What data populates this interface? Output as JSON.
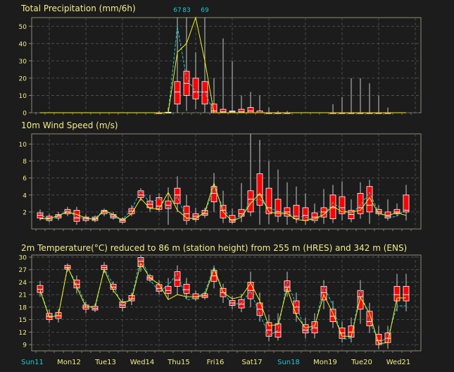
{
  "colors": {
    "background": "#1c1c1c",
    "text": "#f2ee8a",
    "frame": "#8c8c78",
    "grid": "#555555",
    "box_fill": "#ff0000",
    "box_edge": "#ffffff",
    "whisker": "#c8c8c8",
    "hres_line": "#f0f01e",
    "control_line": "#1ec8d2",
    "sunday_label": "#1ec8d2",
    "day_label": "#f2ee8a"
  },
  "chart_data": [
    {
      "id": "precip",
      "type": "boxplot",
      "title": "Total Precipitation (mm/6h)",
      "yticks": [
        0,
        10,
        20,
        30,
        40,
        50
      ],
      "ylim": [
        0,
        55
      ],
      "grid": true,
      "x_index": [
        0,
        1,
        2,
        3,
        4,
        5,
        6,
        7,
        8,
        9,
        10,
        11,
        12,
        13,
        14,
        15,
        16,
        17,
        18,
        19,
        20,
        21,
        22,
        23,
        24,
        25,
        26,
        27,
        28,
        29,
        30,
        31,
        32,
        33,
        34,
        35,
        36,
        37,
        38,
        39,
        40
      ],
      "boxes": [
        [
          0,
          0,
          0,
          0,
          0
        ],
        [
          0,
          0,
          0,
          0,
          0
        ],
        [
          0,
          0,
          0,
          0,
          0
        ],
        [
          0,
          0,
          0,
          0,
          0
        ],
        [
          0,
          0,
          0,
          0,
          0
        ],
        [
          0,
          0,
          0,
          0,
          0
        ],
        [
          0,
          0,
          0,
          0,
          0
        ],
        [
          0,
          0,
          0,
          0,
          0
        ],
        [
          0,
          0,
          0,
          0,
          0
        ],
        [
          0,
          0,
          0,
          0,
          0
        ],
        [
          0,
          0,
          0,
          0,
          0
        ],
        [
          0,
          0,
          0,
          0,
          0
        ],
        [
          0,
          0,
          0,
          0,
          0
        ],
        [
          0,
          0,
          0,
          0,
          1
        ],
        [
          0,
          0,
          0,
          0.3,
          3
        ],
        [
          0,
          5,
          12,
          18,
          67
        ],
        [
          1,
          10,
          17,
          24,
          83
        ],
        [
          2,
          8,
          12,
          20,
          35
        ],
        [
          0,
          5,
          12,
          18,
          69
        ],
        [
          0,
          0,
          1,
          5,
          20
        ],
        [
          0,
          0,
          0.5,
          2,
          43
        ],
        [
          0,
          0,
          0.5,
          1,
          30
        ],
        [
          0,
          0,
          0.5,
          2,
          10
        ],
        [
          0,
          0,
          1,
          3,
          12
        ],
        [
          0,
          0,
          0,
          1,
          10
        ],
        [
          0,
          0,
          0,
          0,
          3
        ],
        [
          0,
          0,
          0,
          0,
          1
        ],
        [
          0,
          0,
          0,
          0,
          1
        ],
        [
          0,
          0,
          0,
          0,
          0
        ],
        [
          0,
          0,
          0,
          0,
          0
        ],
        [
          0,
          0,
          0,
          0,
          0
        ],
        [
          0,
          0,
          0,
          0,
          0
        ],
        [
          0,
          0,
          0,
          0,
          5
        ],
        [
          0,
          0,
          0,
          0,
          9
        ],
        [
          0,
          0,
          0,
          0,
          20
        ],
        [
          0,
          0,
          0,
          0,
          20
        ],
        [
          0,
          0,
          0,
          0,
          17
        ],
        [
          0,
          0,
          0,
          0,
          10
        ],
        [
          0,
          0,
          0,
          0,
          3
        ],
        [
          0,
          0,
          0,
          0,
          0
        ],
        [
          0,
          0,
          0,
          0,
          0
        ]
      ],
      "hres": [
        0,
        0,
        0,
        0,
        0,
        0,
        0,
        0,
        0,
        0,
        0,
        0,
        0,
        0,
        0,
        35,
        40,
        55,
        30,
        0,
        0,
        0,
        0,
        0,
        0,
        0,
        0,
        0,
        0,
        0,
        0,
        0,
        0,
        0,
        0,
        0,
        0,
        0,
        0,
        0,
        0
      ],
      "control": [
        0,
        0,
        0,
        0,
        0,
        0,
        0,
        0,
        0,
        0,
        0,
        0,
        0,
        0,
        0,
        50,
        20,
        12,
        12,
        0,
        0,
        0,
        0,
        0,
        0,
        0,
        0,
        0,
        0,
        0,
        0,
        0,
        0,
        0,
        0,
        0,
        0,
        0,
        0,
        0,
        0
      ],
      "annotations": [
        {
          "x": 15,
          "label": "67"
        },
        {
          "x": 16,
          "label": "83"
        },
        {
          "x": 18,
          "label": "69"
        }
      ]
    },
    {
      "id": "wind",
      "type": "boxplot",
      "title": "10m Wind Speed (m/s)",
      "yticks": [
        2,
        4,
        6,
        8,
        10
      ],
      "ylim": [
        0,
        11.2
      ],
      "grid": true,
      "x_index": [
        0,
        1,
        2,
        3,
        4,
        5,
        6,
        7,
        8,
        9,
        10,
        11,
        12,
        13,
        14,
        15,
        16,
        17,
        18,
        19,
        20,
        21,
        22,
        23,
        24,
        25,
        26,
        27,
        28,
        29,
        30,
        31,
        32,
        33,
        34,
        35,
        36,
        37,
        38,
        39,
        40
      ],
      "boxes": [
        [
          1.0,
          1.3,
          1.6,
          1.9,
          2.3
        ],
        [
          0.8,
          1.0,
          1.3,
          1.5,
          1.8
        ],
        [
          1.0,
          1.3,
          1.5,
          1.7,
          2.0
        ],
        [
          1.5,
          1.8,
          2.0,
          2.3,
          2.6
        ],
        [
          0.5,
          0.9,
          1.3,
          2.2,
          2.6
        ],
        [
          0.8,
          1.0,
          1.2,
          1.4,
          1.7
        ],
        [
          0.8,
          1.0,
          1.2,
          1.4,
          1.6
        ],
        [
          1.5,
          1.8,
          2.0,
          2.2,
          2.4
        ],
        [
          1.1,
          1.3,
          1.5,
          1.7,
          2.0
        ],
        [
          0.6,
          0.8,
          1.0,
          1.2,
          1.4
        ],
        [
          1.5,
          1.8,
          2.1,
          2.4,
          2.8
        ],
        [
          3.3,
          3.7,
          4.0,
          4.5,
          4.8
        ],
        [
          2.0,
          2.5,
          2.9,
          3.3,
          4.0
        ],
        [
          2.0,
          2.3,
          2.7,
          3.7,
          4.2
        ],
        [
          0.5,
          2.4,
          2.8,
          3.3,
          4.9
        ],
        [
          2.0,
          3.0,
          4.0,
          4.8,
          6.2
        ],
        [
          0.5,
          1.0,
          1.8,
          2.7,
          4.0
        ],
        [
          0.8,
          1.1,
          1.5,
          1.8,
          2.5
        ],
        [
          1.3,
          1.6,
          1.8,
          2.2,
          2.5
        ],
        [
          2.0,
          3.2,
          4.2,
          5.0,
          6.6
        ],
        [
          0.7,
          1.3,
          2.2,
          2.8,
          4.5
        ],
        [
          0.6,
          0.8,
          1.1,
          1.6,
          2.4
        ],
        [
          0.8,
          1.5,
          1.8,
          2.3,
          5.4
        ],
        [
          1.5,
          2.0,
          3.5,
          4.5,
          11.2
        ],
        [
          0.5,
          2.8,
          4.0,
          6.5,
          10.5
        ],
        [
          0.6,
          1.8,
          2.5,
          4.8,
          8.0
        ],
        [
          0.8,
          1.5,
          2.0,
          3.5,
          7.0
        ],
        [
          0.5,
          1.5,
          2.0,
          2.5,
          5.5
        ],
        [
          0.7,
          1.2,
          1.5,
          2.8,
          5.0
        ],
        [
          0.5,
          1.0,
          1.6,
          2.5,
          4.2
        ],
        [
          0.7,
          1.0,
          1.4,
          1.9,
          3.0
        ],
        [
          0.6,
          1.4,
          2.0,
          2.5,
          4.7
        ],
        [
          0.7,
          1.2,
          2.5,
          4.0,
          5.2
        ],
        [
          1.0,
          1.8,
          2.5,
          3.8,
          5.6
        ],
        [
          0.8,
          1.2,
          1.7,
          2.2,
          3.5
        ],
        [
          1.2,
          1.8,
          2.5,
          4.2,
          5.5
        ],
        [
          0.6,
          2.0,
          2.8,
          5.0,
          5.8
        ],
        [
          1.5,
          1.8,
          2.0,
          2.3,
          2.8
        ],
        [
          1.0,
          1.3,
          1.5,
          2.0,
          3.5
        ],
        [
          1.5,
          1.8,
          2.0,
          2.3,
          3.0
        ],
        [
          1.0,
          2.0,
          2.2,
          4.0,
          5.2
        ]
      ],
      "hres": [
        1.2,
        1.2,
        1.6,
        2.0,
        1.7,
        1.3,
        1.1,
        2.2,
        1.7,
        1.0,
        1.8,
        3.6,
        2.4,
        2.4,
        4.3,
        2.2,
        1.3,
        1.2,
        2.0,
        5.4,
        2.0,
        0.9,
        1.4,
        3.0,
        4.2,
        2.0,
        1.8,
        1.8,
        1.1,
        1.0,
        1.2,
        1.7,
        2.7,
        2.0,
        2.0,
        2.2,
        3.7,
        1.8,
        1.6,
        1.9,
        1.6
      ],
      "control": [
        1.8,
        1.0,
        1.5,
        2.2,
        1.4,
        1.2,
        1.3,
        2.2,
        1.4,
        1.1,
        2.3,
        4.6,
        3.0,
        3.6,
        2.5,
        3.8,
        1.2,
        1.3,
        1.8,
        4.9,
        2.5,
        1.0,
        1.6,
        3.2,
        3.5,
        2.5,
        2.1,
        1.8,
        1.5,
        1.4,
        1.0,
        1.7,
        3.1,
        2.3,
        1.8,
        2.8,
        4.3,
        2.0,
        1.3,
        1.5,
        2.4
      ]
    },
    {
      "id": "temp",
      "type": "boxplot",
      "title": "2m Temperature(°C) reduced to 86 m (station height) from 255 m (HRES) and 342 m (ENS)",
      "yticks": [
        9,
        12,
        15,
        18,
        21,
        24,
        27,
        30
      ],
      "ylim": [
        7.5,
        30.5
      ],
      "grid": true,
      "x_index": [
        0,
        1,
        2,
        3,
        4,
        5,
        6,
        7,
        8,
        9,
        10,
        11,
        12,
        13,
        14,
        15,
        16,
        17,
        18,
        19,
        20,
        21,
        22,
        23,
        24,
        25,
        26,
        27,
        28,
        29,
        30,
        31,
        32,
        33,
        34,
        35,
        36,
        37,
        38,
        39,
        40
      ],
      "boxes": [
        [
          20.5,
          21.5,
          22.3,
          23.2,
          24.3
        ],
        [
          14.2,
          15.0,
          15.8,
          16.5,
          17.5
        ],
        [
          14.3,
          15.3,
          15.9,
          16.7,
          17.5
        ],
        [
          26.5,
          27.1,
          27.5,
          28.0,
          28.5
        ],
        [
          21.3,
          22.6,
          23.5,
          24.5,
          25.6
        ],
        [
          16.5,
          17.5,
          18.0,
          18.5,
          19.3
        ],
        [
          16.8,
          17.3,
          17.7,
          18.2,
          18.8
        ],
        [
          26.2,
          27.0,
          27.5,
          28.0,
          28.8
        ],
        [
          21.5,
          22.3,
          22.8,
          23.5,
          24.2
        ],
        [
          17.0,
          17.9,
          18.5,
          19.3,
          20.1
        ],
        [
          18.5,
          19.5,
          20.0,
          20.8,
          21.5
        ],
        [
          26.5,
          27.7,
          29.0,
          29.9,
          30.5
        ],
        [
          24.0,
          24.5,
          25.0,
          25.5,
          26.0
        ],
        [
          21.0,
          21.8,
          22.5,
          23.4,
          24.5
        ],
        [
          20.0,
          21.3,
          22.0,
          23.0,
          25.0
        ],
        [
          21.0,
          23.0,
          24.5,
          26.5,
          28.0
        ],
        [
          20.0,
          21.3,
          22.2,
          23.5,
          25.0
        ],
        [
          19.5,
          20.0,
          20.5,
          21.2,
          22.0
        ],
        [
          19.8,
          20.3,
          20.7,
          21.2,
          21.8
        ],
        [
          22.5,
          24.2,
          25.5,
          26.8,
          28.0
        ],
        [
          19.0,
          20.5,
          21.5,
          22.5,
          23.6
        ],
        [
          17.5,
          18.4,
          19.0,
          19.6,
          20.7
        ],
        [
          16.8,
          17.8,
          18.7,
          19.8,
          21.2
        ],
        [
          18.0,
          20.0,
          22.0,
          24.0,
          26.5
        ],
        [
          14.5,
          16.0,
          17.5,
          19.0,
          21.5
        ],
        [
          9.8,
          11.0,
          12.5,
          14.3,
          16.2
        ],
        [
          10.0,
          10.8,
          12.0,
          14.0,
          16.5
        ],
        [
          20.5,
          21.8,
          22.8,
          24.3,
          26.5
        ],
        [
          14.5,
          16.5,
          18.0,
          19.5,
          21.5
        ],
        [
          10.5,
          11.8,
          12.5,
          13.8,
          15.5
        ],
        [
          10.5,
          11.8,
          13.0,
          14.5,
          16.5
        ],
        [
          17.5,
          19.7,
          21.5,
          23.0,
          24.5
        ],
        [
          13.0,
          14.5,
          15.8,
          17.5,
          19.5
        ],
        [
          9.5,
          10.5,
          11.8,
          13.0,
          14.5
        ],
        [
          9.5,
          10.8,
          12.0,
          13.5,
          15.5
        ],
        [
          14.0,
          17.5,
          20.5,
          22.0,
          24.5
        ],
        [
          11.8,
          13.5,
          14.5,
          17.0,
          19.0
        ],
        [
          8.0,
          9.0,
          10.0,
          11.5,
          13.5
        ],
        [
          8.0,
          9.5,
          10.5,
          11.8,
          13.5
        ],
        [
          17.0,
          19.5,
          21.0,
          23.0,
          26.0
        ],
        [
          17.0,
          19.5,
          21.0,
          23.0,
          26.0
        ]
      ],
      "hres": [
        22.0,
        15.5,
        16.0,
        27.7,
        22.8,
        18.0,
        18.2,
        27.0,
        22.0,
        19.0,
        19.8,
        28.5,
        25.0,
        23.5,
        19.8,
        21.0,
        20.5,
        20.5,
        20.8,
        27.2,
        21.5,
        20.0,
        20.5,
        23.8,
        19.5,
        13.5,
        13.8,
        22.5,
        16.0,
        13.0,
        13.5,
        21.0,
        16.5,
        11.0,
        11.0,
        20.3,
        16.5,
        9.2,
        9.5,
        20.2,
        20.2
      ],
      "control": [
        22.3,
        15.8,
        16.3,
        27.3,
        23.7,
        18.4,
        17.5,
        27.4,
        23.3,
        18.1,
        20.2,
        30.2,
        24.6,
        21.7,
        23.3,
        26.1,
        19.7,
        20.2,
        21.5,
        27.7,
        21.6,
        18.6,
        19.0,
        21.8,
        16.4,
        11.2,
        12.4,
        24.0,
        18.6,
        12.0,
        13.1,
        23.0,
        18.4,
        10.3,
        10.5,
        22.4,
        14.7,
        9.5,
        10.7,
        18.3,
        18.3
      ]
    }
  ],
  "xaxis": {
    "labels": [
      {
        "text": "Sun11",
        "x": 0,
        "sunday": true
      },
      {
        "text": "Mon12",
        "x": 4,
        "sunday": false
      },
      {
        "text": "Tue13",
        "x": 8,
        "sunday": false
      },
      {
        "text": "Wed14",
        "x": 12,
        "sunday": false
      },
      {
        "text": "Thu15",
        "x": 16,
        "sunday": false
      },
      {
        "text": "Fri16",
        "x": 20,
        "sunday": false
      },
      {
        "text": "Sat17",
        "x": 24,
        "sunday": false
      },
      {
        "text": "Sun18",
        "x": 28,
        "sunday": true
      },
      {
        "text": "Mon19",
        "x": 32,
        "sunday": false
      },
      {
        "text": "Tue20",
        "x": 36,
        "sunday": false
      },
      {
        "text": "Wed21",
        "x": 40,
        "sunday": false
      }
    ]
  }
}
